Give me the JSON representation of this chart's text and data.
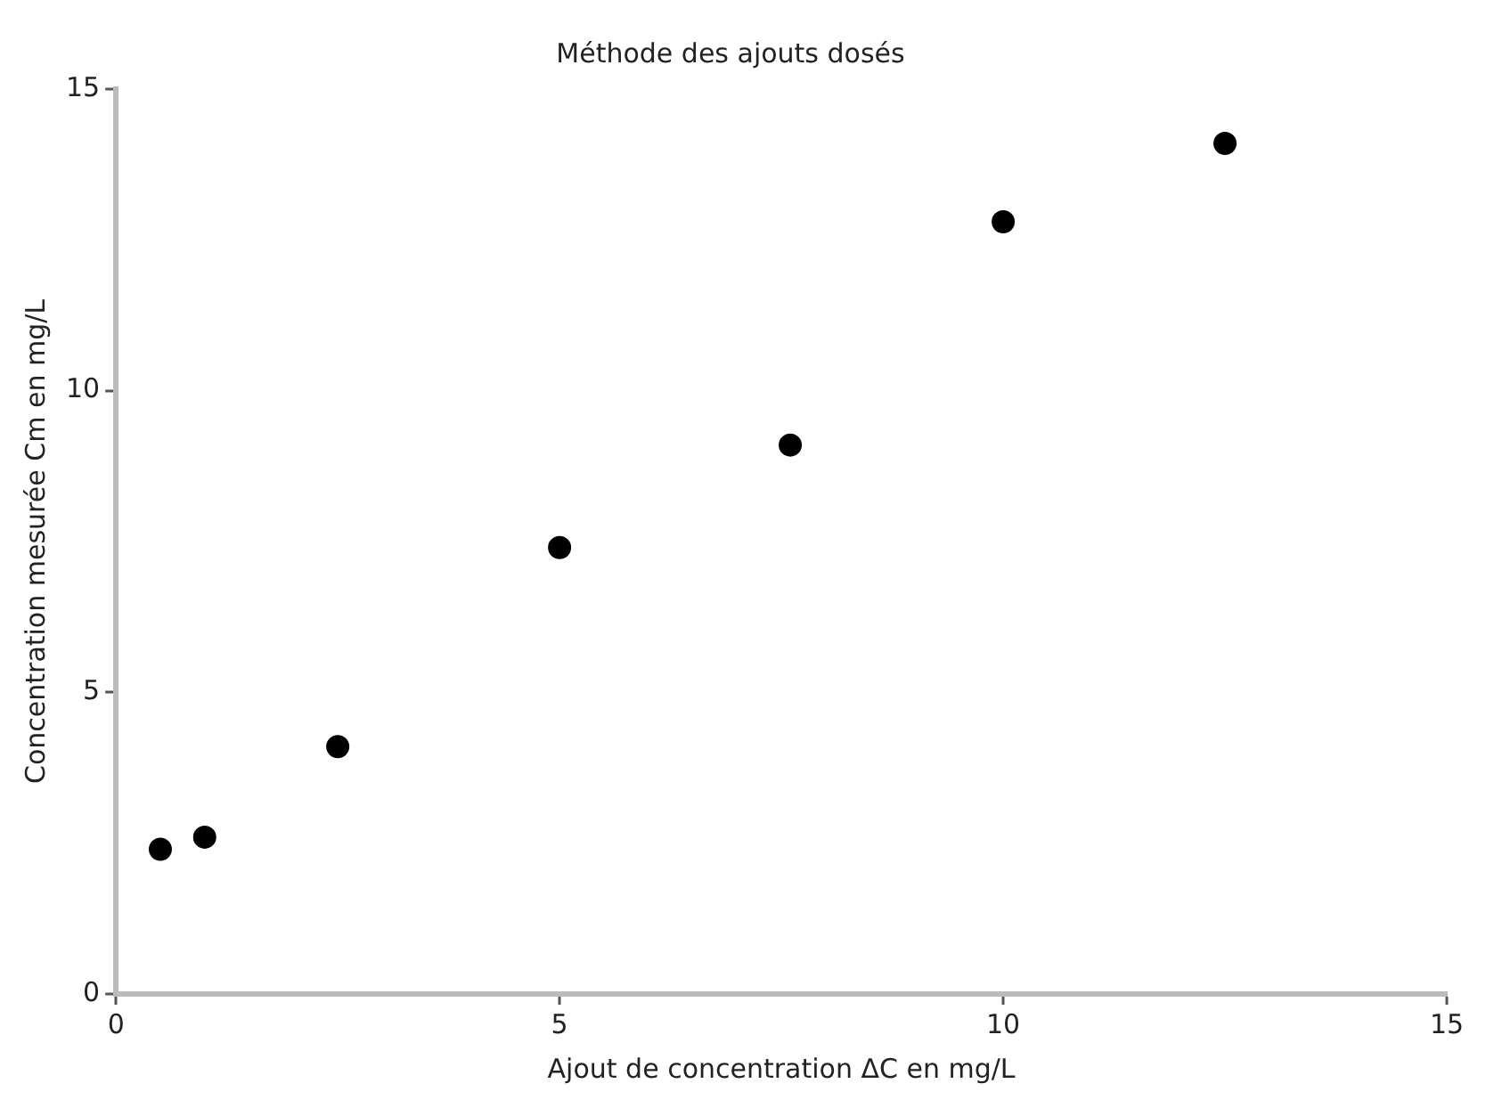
{
  "chart_data": {
    "type": "scatter",
    "title": "Méthode des ajouts dosés",
    "xlabel": "Ajout de concentration ΔC en mg/L",
    "ylabel": "Concentration mesurée Cm en mg/L",
    "x": [
      0.5,
      1,
      2.5,
      5,
      7.6,
      10,
      12.5
    ],
    "series": [
      {
        "color": "#000000",
        "values": [
          2.4,
          2.6,
          4.1,
          7.4,
          9.1,
          12.8,
          14.1
        ]
      }
    ],
    "xlim": [
      0,
      15
    ],
    "xticks": [
      0,
      5,
      10,
      15
    ],
    "ylim": [
      0,
      15
    ],
    "yticks": [
      0,
      5,
      10,
      15
    ],
    "grid": false,
    "legend": false,
    "marker": "circle"
  }
}
